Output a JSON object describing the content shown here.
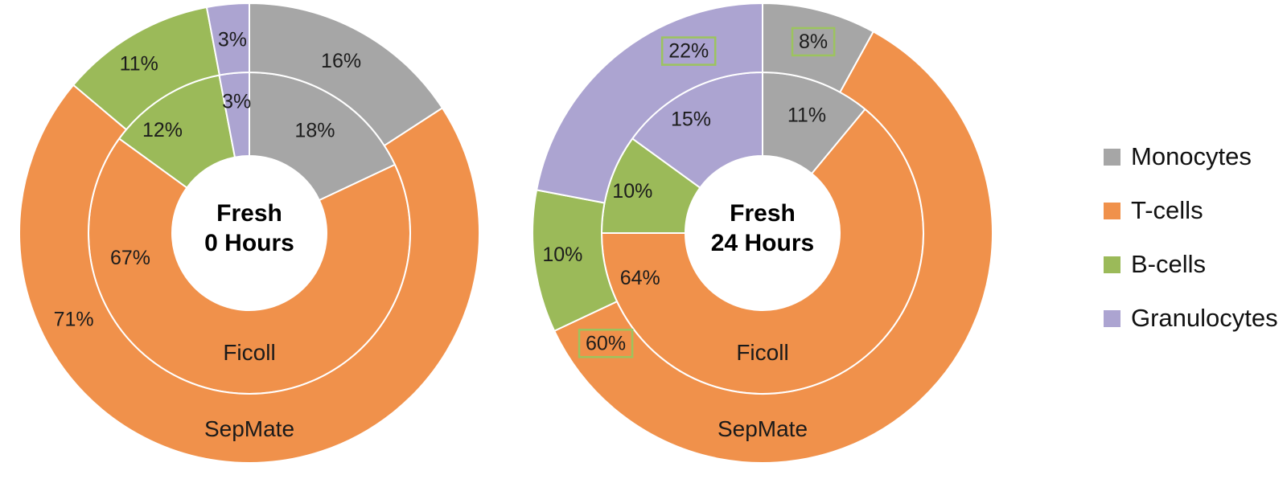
{
  "figure": {
    "background": "#FFFFFF"
  },
  "colors": {
    "categories": {
      "Monocytes": "#A6A6A6",
      "T-cells": "#F0914B",
      "B-cells": "#9BBA59",
      "Granulocytes": "#ACA4D1"
    },
    "label_box_border": "#9CC45E",
    "separator": "#FFFFFF",
    "percent_text": "#1C1C1C",
    "ring_label_text": "#1A1A1A",
    "center_text": "#000000"
  },
  "legend": {
    "position": "right",
    "items": [
      {
        "label": "Monocytes"
      },
      {
        "label": "T-cells"
      },
      {
        "label": "B-cells"
      },
      {
        "label": "Granulocytes"
      }
    ]
  },
  "chart_data": [
    {
      "type": "pie",
      "variant": "nested_donut",
      "units": "%",
      "title": "Fresh 0 Hours",
      "center_label_lines": [
        "Fresh",
        "0 Hours"
      ],
      "categories": [
        "Monocytes",
        "T-cells",
        "B-cells",
        "Granulocytes"
      ],
      "rings": [
        {
          "name": "Ficoll",
          "position": "inner",
          "values": [
            18,
            67,
            12,
            3
          ],
          "labels": [
            {
              "text": "18%",
              "angle": 32.4,
              "r": 152,
              "boxed": false
            },
            {
              "text": "67%",
              "angle": 258.5,
              "r": 151,
              "boxed": false
            },
            {
              "text": "12%",
              "angle": 320,
              "r": 168,
              "boxed": false
            },
            {
              "text": "3%",
              "angle": 354.5,
              "r": 165,
              "boxed": false
            }
          ]
        },
        {
          "name": "SepMate",
          "position": "outer",
          "values": [
            16,
            71,
            11,
            3
          ],
          "labels": [
            {
              "text": "16%",
              "angle": 28,
              "r": 243,
              "boxed": false
            },
            {
              "text": "71%",
              "angle": 244,
              "r": 243,
              "boxed": false
            },
            {
              "text": "11%",
              "angle": 327,
              "r": 252,
              "boxed": false
            },
            {
              "text": "3%",
              "angle": 355,
              "r": 242,
              "boxed": false
            }
          ]
        }
      ]
    },
    {
      "type": "pie",
      "variant": "nested_donut",
      "units": "%",
      "title": "Fresh 24 Hours",
      "center_label_lines": [
        "Fresh",
        "24 Hours"
      ],
      "categories": [
        "Monocytes",
        "T-cells",
        "B-cells",
        "Granulocytes"
      ],
      "rings": [
        {
          "name": "Ficoll",
          "position": "inner",
          "values": [
            11,
            64,
            10,
            15
          ],
          "labels": [
            {
              "text": "11%",
              "angle": 20.5,
              "r": 157,
              "boxed": false
            },
            {
              "text": "64%",
              "angle": 250,
              "r": 162,
              "boxed": false
            },
            {
              "text": "10%",
              "angle": 288,
              "r": 170,
              "boxed": false
            },
            {
              "text": "15%",
              "angle": 328,
              "r": 168,
              "boxed": false
            }
          ]
        },
        {
          "name": "SepMate",
          "position": "outer",
          "values": [
            8,
            60,
            10,
            22
          ],
          "labels": [
            {
              "text": "8%",
              "angle": 14.8,
              "r": 247,
              "boxed": true
            },
            {
              "text": "60%",
              "angle": 235,
              "r": 238,
              "boxed": true
            },
            {
              "text": "10%",
              "angle": 264,
              "r": 250,
              "boxed": false
            },
            {
              "text": "22%",
              "angle": 338,
              "r": 245,
              "boxed": true
            }
          ]
        }
      ]
    }
  ]
}
